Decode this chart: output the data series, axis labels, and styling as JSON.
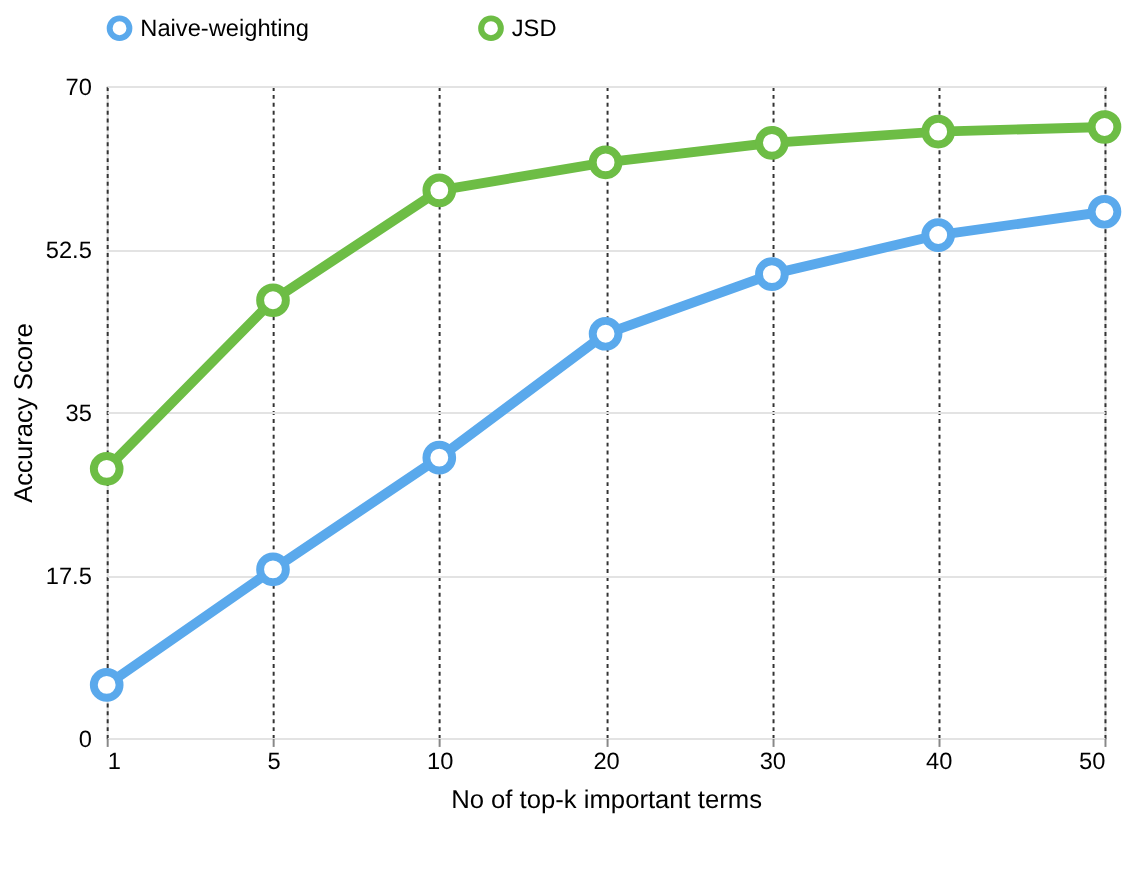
{
  "chart_data": {
    "type": "line",
    "xlabel": "No of top-k important terms",
    "ylabel": "Accuracy Score",
    "categories": [
      "1",
      "5",
      "10",
      "20",
      "30",
      "40",
      "50"
    ],
    "series": [
      {
        "name": "Naive-weighting",
        "color": "#5aa9ec",
        "values": [
          5.7,
          18.1,
          30.1,
          43.4,
          49.8,
          54.0,
          56.5
        ]
      },
      {
        "name": "JSD",
        "color": "#6dbd45",
        "values": [
          28.9,
          47.0,
          58.8,
          61.8,
          63.9,
          65.1,
          65.6
        ]
      }
    ],
    "ylim": [
      0,
      70
    ],
    "yticks": [
      0,
      17.5,
      35,
      52.5,
      70
    ],
    "grid": true,
    "legend": "top",
    "marker": "circle",
    "line_style": "solid"
  }
}
